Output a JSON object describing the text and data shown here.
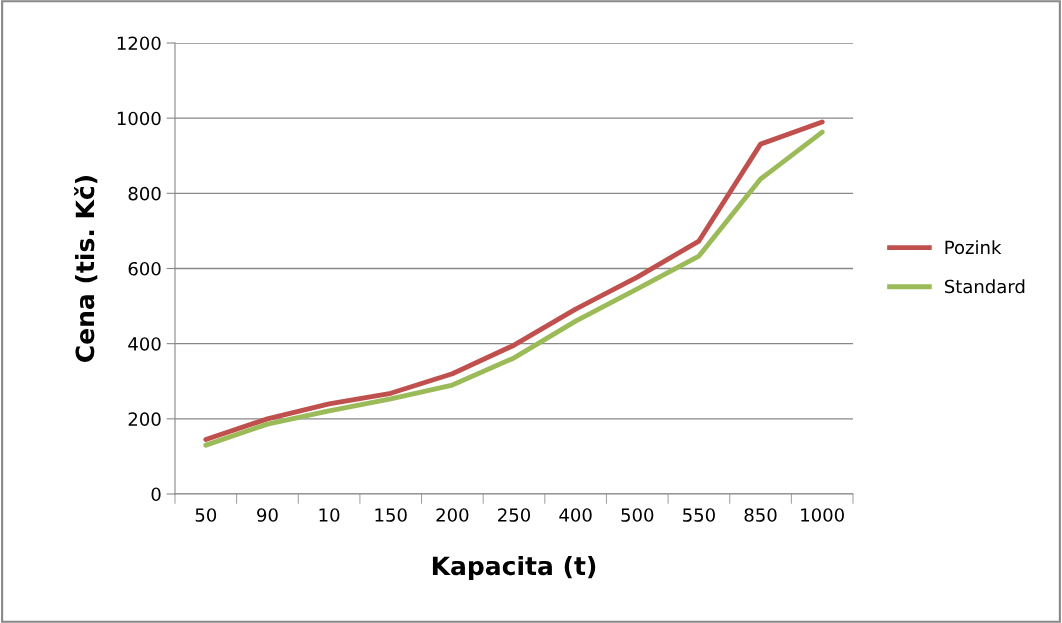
{
  "chart_data": {
    "type": "line",
    "xlabel": "Kapacita (t)",
    "ylabel": "Cena (tis. Kč)",
    "categories": [
      "50",
      "90",
      "10",
      "150",
      "200",
      "250",
      "400",
      "500",
      "550",
      "850",
      "1000"
    ],
    "series": [
      {
        "name": "Pozink",
        "color": "#c0504d",
        "values": [
          145,
          200,
          240,
          268,
          320,
          396,
          492,
          577,
          673,
          931,
          990
        ]
      },
      {
        "name": "Standard",
        "color": "#9bbb59",
        "values": [
          130,
          186,
          221,
          253,
          290,
          362,
          460,
          546,
          633,
          838,
          963
        ]
      }
    ],
    "ylim": [
      0,
      1200
    ],
    "yticks": [
      0,
      200,
      400,
      600,
      800,
      1000,
      1200
    ],
    "grid": "y",
    "legend": "right",
    "marker": "none",
    "line_style": "solid"
  }
}
